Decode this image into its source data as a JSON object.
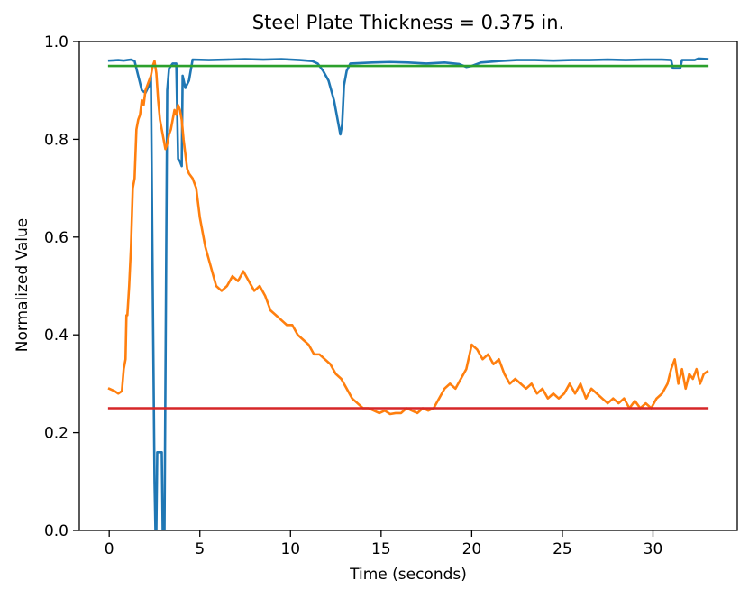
{
  "chart_data": {
    "type": "line",
    "title": "Steel Plate Thickness = 0.375 in.",
    "xlabel": "Time (seconds)",
    "ylabel": "Normalized Value",
    "xlim": [
      -1.65,
      34.65
    ],
    "ylim": [
      0.0,
      1.0
    ],
    "xticks": [
      0,
      5,
      10,
      15,
      20,
      25,
      30
    ],
    "xtick_labels": [
      "0",
      "5",
      "10",
      "15",
      "20",
      "25",
      "30"
    ],
    "yticks": [
      0.0,
      0.2,
      0.4,
      0.6,
      0.8,
      1.0
    ],
    "ytick_labels": [
      "0.0",
      "0.2",
      "0.4",
      "0.6",
      "0.8",
      "1.0"
    ],
    "grid": false,
    "series": [
      {
        "name": "blue",
        "color": "#1f77b4",
        "points": [
          [
            0,
            0.961
          ],
          [
            0.5,
            0.962
          ],
          [
            0.8,
            0.961
          ],
          [
            1.0,
            0.962
          ],
          [
            1.2,
            0.963
          ],
          [
            1.4,
            0.96
          ],
          [
            1.6,
            0.93
          ],
          [
            1.8,
            0.9
          ],
          [
            2.0,
            0.895
          ],
          [
            2.2,
            0.91
          ],
          [
            2.3,
            0.93
          ],
          [
            2.4,
            0.5
          ],
          [
            2.5,
            0.1
          ],
          [
            2.55,
            0.0
          ],
          [
            2.6,
            0.0
          ],
          [
            2.65,
            0.16
          ],
          [
            2.9,
            0.16
          ],
          [
            2.95,
            0.0
          ],
          [
            3.05,
            0.0
          ],
          [
            3.15,
            0.6
          ],
          [
            3.2,
            0.9
          ],
          [
            3.3,
            0.945
          ],
          [
            3.5,
            0.955
          ],
          [
            3.7,
            0.955
          ],
          [
            3.8,
            0.76
          ],
          [
            3.9,
            0.755
          ],
          [
            4.0,
            0.745
          ],
          [
            4.05,
            0.93
          ],
          [
            4.2,
            0.905
          ],
          [
            4.4,
            0.92
          ],
          [
            4.6,
            0.963
          ],
          [
            5.5,
            0.962
          ],
          [
            6.5,
            0.963
          ],
          [
            7.5,
            0.964
          ],
          [
            8.5,
            0.963
          ],
          [
            9.5,
            0.964
          ],
          [
            10.5,
            0.962
          ],
          [
            11.2,
            0.96
          ],
          [
            11.5,
            0.955
          ],
          [
            11.8,
            0.94
          ],
          [
            12.1,
            0.92
          ],
          [
            12.4,
            0.88
          ],
          [
            12.6,
            0.84
          ],
          [
            12.75,
            0.81
          ],
          [
            12.85,
            0.83
          ],
          [
            12.95,
            0.91
          ],
          [
            13.1,
            0.94
          ],
          [
            13.3,
            0.955
          ],
          [
            14.5,
            0.957
          ],
          [
            15.5,
            0.958
          ],
          [
            16.5,
            0.957
          ],
          [
            17.5,
            0.955
          ],
          [
            18.5,
            0.957
          ],
          [
            19.3,
            0.954
          ],
          [
            19.7,
            0.948
          ],
          [
            20.0,
            0.95
          ],
          [
            20.5,
            0.957
          ],
          [
            21.5,
            0.96
          ],
          [
            22.5,
            0.962
          ],
          [
            23.5,
            0.962
          ],
          [
            24.5,
            0.961
          ],
          [
            25.5,
            0.962
          ],
          [
            26.5,
            0.962
          ],
          [
            27.5,
            0.963
          ],
          [
            28.5,
            0.962
          ],
          [
            29.5,
            0.963
          ],
          [
            30.5,
            0.963
          ],
          [
            31.0,
            0.962
          ],
          [
            31.1,
            0.945
          ],
          [
            31.5,
            0.945
          ],
          [
            31.6,
            0.962
          ],
          [
            32.3,
            0.962
          ],
          [
            32.5,
            0.965
          ],
          [
            33.0,
            0.964
          ]
        ]
      },
      {
        "name": "orange",
        "color": "#ff7f0e",
        "points": [
          [
            0,
            0.29
          ],
          [
            0.3,
            0.285
          ],
          [
            0.5,
            0.28
          ],
          [
            0.7,
            0.285
          ],
          [
            0.8,
            0.33
          ],
          [
            0.9,
            0.35
          ],
          [
            0.95,
            0.44
          ],
          [
            1.0,
            0.44
          ],
          [
            1.1,
            0.5
          ],
          [
            1.2,
            0.58
          ],
          [
            1.3,
            0.7
          ],
          [
            1.4,
            0.72
          ],
          [
            1.5,
            0.82
          ],
          [
            1.6,
            0.84
          ],
          [
            1.7,
            0.85
          ],
          [
            1.8,
            0.88
          ],
          [
            1.9,
            0.87
          ],
          [
            2.0,
            0.9
          ],
          [
            2.1,
            0.91
          ],
          [
            2.2,
            0.92
          ],
          [
            2.3,
            0.93
          ],
          [
            2.4,
            0.95
          ],
          [
            2.5,
            0.96
          ],
          [
            2.6,
            0.935
          ],
          [
            2.7,
            0.88
          ],
          [
            2.8,
            0.84
          ],
          [
            2.9,
            0.82
          ],
          [
            3.0,
            0.8
          ],
          [
            3.1,
            0.78
          ],
          [
            3.2,
            0.79
          ],
          [
            3.3,
            0.81
          ],
          [
            3.4,
            0.82
          ],
          [
            3.5,
            0.84
          ],
          [
            3.6,
            0.86
          ],
          [
            3.7,
            0.85
          ],
          [
            3.8,
            0.87
          ],
          [
            3.9,
            0.86
          ],
          [
            4.0,
            0.84
          ],
          [
            4.1,
            0.8
          ],
          [
            4.2,
            0.77
          ],
          [
            4.3,
            0.74
          ],
          [
            4.4,
            0.73
          ],
          [
            4.6,
            0.72
          ],
          [
            4.8,
            0.7
          ],
          [
            5.0,
            0.64
          ],
          [
            5.3,
            0.58
          ],
          [
            5.6,
            0.54
          ],
          [
            5.9,
            0.5
          ],
          [
            6.2,
            0.49
          ],
          [
            6.5,
            0.5
          ],
          [
            6.8,
            0.52
          ],
          [
            7.1,
            0.51
          ],
          [
            7.4,
            0.53
          ],
          [
            7.7,
            0.51
          ],
          [
            8.0,
            0.49
          ],
          [
            8.3,
            0.5
          ],
          [
            8.6,
            0.48
          ],
          [
            8.9,
            0.45
          ],
          [
            9.2,
            0.44
          ],
          [
            9.5,
            0.43
          ],
          [
            9.8,
            0.42
          ],
          [
            10.1,
            0.42
          ],
          [
            10.4,
            0.4
          ],
          [
            10.7,
            0.39
          ],
          [
            11.0,
            0.38
          ],
          [
            11.3,
            0.36
          ],
          [
            11.6,
            0.36
          ],
          [
            11.9,
            0.35
          ],
          [
            12.2,
            0.34
          ],
          [
            12.5,
            0.32
          ],
          [
            12.8,
            0.31
          ],
          [
            13.1,
            0.29
          ],
          [
            13.4,
            0.27
          ],
          [
            13.7,
            0.26
          ],
          [
            14.0,
            0.25
          ],
          [
            14.3,
            0.25
          ],
          [
            14.6,
            0.245
          ],
          [
            14.9,
            0.24
          ],
          [
            15.2,
            0.245
          ],
          [
            15.5,
            0.238
          ],
          [
            15.8,
            0.24
          ],
          [
            16.1,
            0.24
          ],
          [
            16.4,
            0.25
          ],
          [
            16.7,
            0.245
          ],
          [
            17.0,
            0.24
          ],
          [
            17.3,
            0.25
          ],
          [
            17.6,
            0.245
          ],
          [
            17.9,
            0.25
          ],
          [
            18.2,
            0.27
          ],
          [
            18.5,
            0.29
          ],
          [
            18.8,
            0.3
          ],
          [
            19.1,
            0.29
          ],
          [
            19.4,
            0.31
          ],
          [
            19.7,
            0.33
          ],
          [
            20.0,
            0.38
          ],
          [
            20.3,
            0.37
          ],
          [
            20.6,
            0.35
          ],
          [
            20.9,
            0.36
          ],
          [
            21.2,
            0.34
          ],
          [
            21.5,
            0.35
          ],
          [
            21.8,
            0.32
          ],
          [
            22.1,
            0.3
          ],
          [
            22.4,
            0.31
          ],
          [
            22.7,
            0.3
          ],
          [
            23.0,
            0.29
          ],
          [
            23.3,
            0.3
          ],
          [
            23.6,
            0.28
          ],
          [
            23.9,
            0.29
          ],
          [
            24.2,
            0.27
          ],
          [
            24.5,
            0.28
          ],
          [
            24.8,
            0.27
          ],
          [
            25.1,
            0.28
          ],
          [
            25.4,
            0.3
          ],
          [
            25.7,
            0.28
          ],
          [
            26.0,
            0.3
          ],
          [
            26.3,
            0.27
          ],
          [
            26.6,
            0.29
          ],
          [
            26.9,
            0.28
          ],
          [
            27.2,
            0.27
          ],
          [
            27.5,
            0.26
          ],
          [
            27.8,
            0.27
          ],
          [
            28.1,
            0.26
          ],
          [
            28.4,
            0.27
          ],
          [
            28.7,
            0.25
          ],
          [
            29.0,
            0.265
          ],
          [
            29.3,
            0.25
          ],
          [
            29.6,
            0.26
          ],
          [
            29.9,
            0.25
          ],
          [
            30.2,
            0.27
          ],
          [
            30.5,
            0.28
          ],
          [
            30.8,
            0.3
          ],
          [
            31.0,
            0.33
          ],
          [
            31.2,
            0.35
          ],
          [
            31.4,
            0.3
          ],
          [
            31.6,
            0.33
          ],
          [
            31.8,
            0.29
          ],
          [
            32.0,
            0.32
          ],
          [
            32.2,
            0.31
          ],
          [
            32.4,
            0.33
          ],
          [
            32.6,
            0.3
          ],
          [
            32.8,
            0.32
          ],
          [
            33.0,
            0.325
          ]
        ]
      },
      {
        "name": "green",
        "color": "#2ca02c",
        "points": [
          [
            0,
            0.95
          ],
          [
            33.0,
            0.95
          ]
        ]
      },
      {
        "name": "red",
        "color": "#d62728",
        "points": [
          [
            0,
            0.25
          ],
          [
            33.0,
            0.25
          ]
        ]
      }
    ]
  }
}
